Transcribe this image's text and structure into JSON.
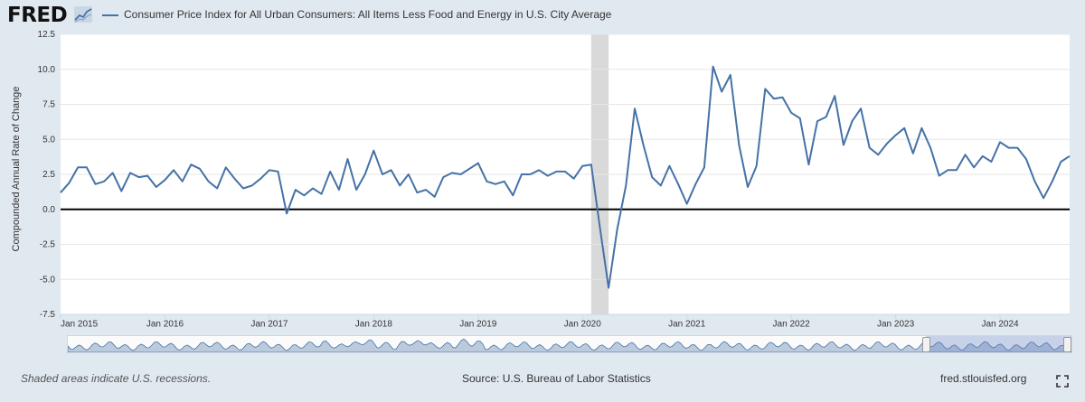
{
  "header": {
    "logo_text": "FRED",
    "legend_label": "Consumer Price Index for All Urban Consumers: All Items Less Food and Energy in U.S. City Average"
  },
  "colors": {
    "series": "#4572a7",
    "recession": "#d9d9d9",
    "background": "#e1e9f0",
    "zero_line": "#000000"
  },
  "chart_data": {
    "type": "line",
    "title": "",
    "ylabel": "Compounded Annual Rate of Change",
    "ylim": [
      -7.5,
      12.5
    ],
    "yticks": [
      "12.5",
      "10.0",
      "7.5",
      "5.0",
      "2.5",
      "0.0",
      "-2.5",
      "-5.0",
      "-7.5"
    ],
    "xlim": [
      "2015-01",
      "2024-09"
    ],
    "xticks": [
      "Jan 2015",
      "Jan 2016",
      "Jan 2017",
      "Jan 2018",
      "Jan 2019",
      "Jan 2020",
      "Jan 2021",
      "Jan 2022",
      "Jan 2023",
      "Jan 2024"
    ],
    "grid": "horizontal",
    "recessions": [
      {
        "start": "2020-02",
        "end": "2020-04"
      }
    ],
    "series": [
      {
        "name": "Consumer Price Index for All Urban Consumers: All Items Less Food and Energy in U.S. City Average",
        "start": "2015-01",
        "frequency": "monthly",
        "values": [
          1.2,
          1.9,
          3.0,
          3.0,
          1.8,
          2.0,
          2.6,
          1.3,
          2.6,
          2.3,
          2.4,
          1.6,
          2.1,
          2.8,
          2.0,
          3.2,
          2.9,
          2.0,
          1.5,
          3.0,
          2.2,
          1.5,
          1.7,
          2.2,
          2.8,
          2.7,
          -0.3,
          1.4,
          1.0,
          1.5,
          1.1,
          2.7,
          1.4,
          3.6,
          1.4,
          2.5,
          4.2,
          2.5,
          2.8,
          1.7,
          2.5,
          1.2,
          1.4,
          0.9,
          2.3,
          2.6,
          2.5,
          2.9,
          3.3,
          2.0,
          1.8,
          2.0,
          1.0,
          2.5,
          2.5,
          2.8,
          2.4,
          2.7,
          2.7,
          2.2,
          3.1,
          3.2,
          -1.3,
          -5.6,
          -1.4,
          1.7,
          7.2,
          4.6,
          2.3,
          1.7,
          3.1,
          1.8,
          0.4,
          1.8,
          3.0,
          10.2,
          8.4,
          9.6,
          4.6,
          1.6,
          3.1,
          8.6,
          7.9,
          8.0,
          6.9,
          6.5,
          3.2,
          6.3,
          6.6,
          8.1,
          4.6,
          6.3,
          7.2,
          4.4,
          3.9,
          4.7,
          5.3,
          5.8,
          4.0,
          5.8,
          4.4,
          2.4,
          2.8,
          2.8,
          3.9,
          3.0,
          3.8,
          3.4,
          4.8,
          4.4,
          4.4,
          3.6,
          2.0,
          0.8,
          2.0,
          3.4,
          3.8
        ]
      }
    ]
  },
  "navigator": {
    "selection_start_fraction": 0.855,
    "selection_end_fraction": 1.0
  },
  "footer": {
    "recession_note": "Shaded areas indicate U.S. recessions.",
    "source": "Source: U.S. Bureau of Labor Statistics",
    "url": "fred.stlouisfed.org"
  }
}
